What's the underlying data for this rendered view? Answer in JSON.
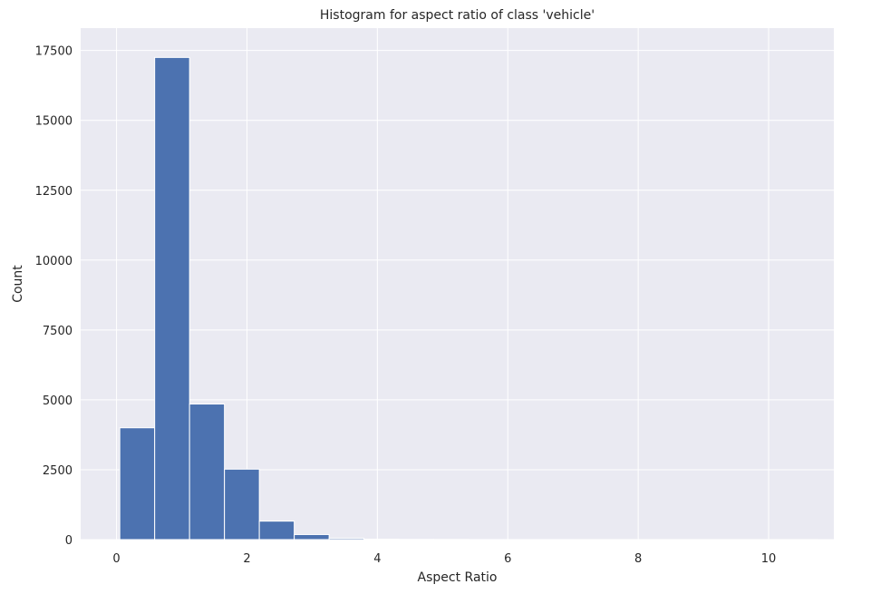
{
  "chart_data": {
    "type": "bar",
    "title": "Histogram for aspect ratio of class 'vehicle'",
    "xlabel": "Aspect Ratio",
    "ylabel": "Count",
    "xlim": [
      -0.55,
      11.0
    ],
    "ylim": [
      0,
      18300
    ],
    "xticks": [
      0,
      2,
      4,
      6,
      8,
      10
    ],
    "xtick_labels": [
      "0",
      "2",
      "4",
      "6",
      "8",
      "10"
    ],
    "yticks": [
      0,
      2500,
      5000,
      7500,
      10000,
      12500,
      15000,
      17500
    ],
    "ytick_labels": [
      "0",
      "2500",
      "5000",
      "7500",
      "10000",
      "12500",
      "15000",
      "17500"
    ],
    "bin_start": 0.05,
    "bin_width": 0.535,
    "values": [
      4000,
      17250,
      4850,
      2520,
      660,
      180,
      45,
      15,
      8,
      5,
      3,
      2,
      2,
      1,
      1,
      1,
      1,
      1,
      1,
      1
    ],
    "bar_color": "#4c72b0",
    "background_color": "#eaeaf2",
    "grid": true,
    "grid_color": "#ffffff"
  }
}
